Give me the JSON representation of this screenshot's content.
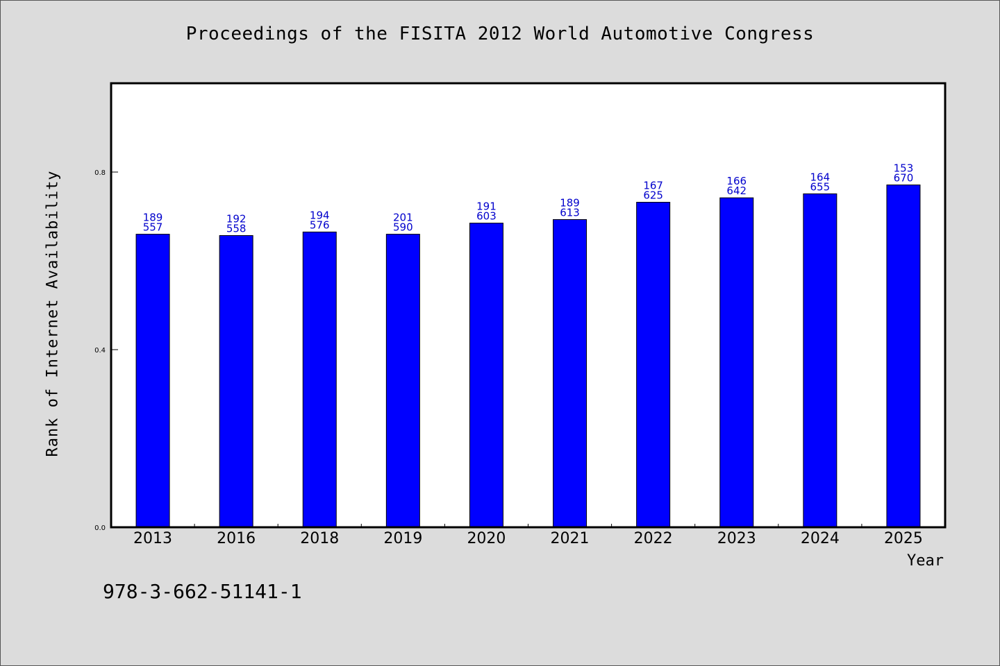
{
  "chart_data": {
    "type": "bar",
    "title": "Proceedings of the FISITA 2012 World Automotive Congress",
    "xlabel": "Year",
    "ylabel": "Rank of Internet Availability",
    "categories": [
      "2013",
      "2016",
      "2018",
      "2019",
      "2020",
      "2021",
      "2022",
      "2023",
      "2024",
      "2025"
    ],
    "values": [
      0.66,
      0.657,
      0.665,
      0.66,
      0.685,
      0.693,
      0.732,
      0.742,
      0.751,
      0.771
    ],
    "labels_top": [
      "189",
      "192",
      "194",
      "201",
      "191",
      "189",
      "167",
      "166",
      "164",
      "153"
    ],
    "labels_bottom": [
      "557",
      "558",
      "576",
      "590",
      "603",
      "613",
      "625",
      "642",
      "655",
      "670"
    ],
    "yticks": [
      "0.0",
      "0.4",
      "0.8"
    ],
    "ylim": [
      0,
      1.0
    ],
    "grid": false,
    "legend": "none",
    "bar_color": "#0000ff",
    "label_color": "#0000cc",
    "background": "#dcdcdc",
    "plot_background": "#ffffff"
  },
  "footer": {
    "isbn": "978-3-662-51141-1"
  }
}
